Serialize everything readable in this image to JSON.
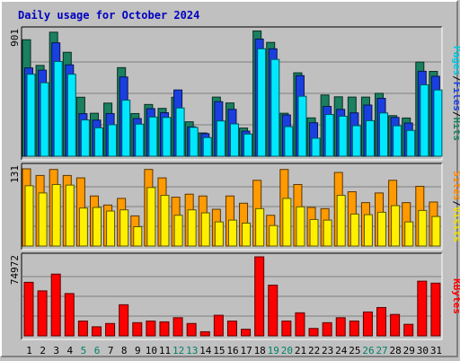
{
  "chart_data": {
    "type": "bar",
    "title": "Daily usage for October 2024",
    "x": [
      "1",
      "2",
      "3",
      "4",
      "5",
      "6",
      "7",
      "8",
      "9",
      "10",
      "11",
      "12",
      "13",
      "14",
      "15",
      "16",
      "17",
      "18",
      "19",
      "20",
      "21",
      "22",
      "23",
      "24",
      "25",
      "26",
      "27",
      "28",
      "29",
      "30",
      "31"
    ],
    "weekend_days": [
      "5",
      "6",
      "12",
      "13",
      "19",
      "20",
      "26",
      "27"
    ],
    "panels": [
      {
        "name": "hits-files-pages",
        "ymax_label": "901",
        "ymax": 901,
        "legend": [
          "Pages",
          "/",
          "Files",
          "/",
          "Hits"
        ],
        "legend_colors": [
          "#00c8e0",
          "#000000",
          "#1a3fe0",
          "#000000",
          "#1a8060"
        ],
        "series": [
          {
            "name": "Hits",
            "color": "#1a8060",
            "values": [
              835,
              651,
              889,
              745,
              423,
              308,
              381,
              635,
              306,
              371,
              343,
              423,
              247,
              167,
              424,
              382,
              202,
              898,
              816,
              308,
              598,
              275,
              439,
              426,
              424,
              424,
              451,
              291,
              274,
              675,
              608
            ]
          },
          {
            "name": "Files",
            "color": "#1a3fe0",
            "values": [
              633,
              617,
              813,
              655,
              305,
              259,
              306,
              568,
              270,
              341,
              312,
              475,
              211,
              162,
              391,
              336,
              180,
              840,
              770,
              296,
              578,
              240,
              357,
              336,
              311,
              367,
              415,
              278,
              238,
              609,
              573
            ]
          },
          {
            "name": "Pages",
            "color": "#00e8ff",
            "values": [
              588,
              527,
              679,
              588,
              260,
              204,
              226,
              402,
              230,
              281,
              278,
              346,
              207,
              134,
              253,
              232,
              159,
              770,
              694,
              212,
              430,
              129,
              299,
              287,
              219,
              255,
              310,
              218,
              185,
              512,
              475
            ]
          }
        ]
      },
      {
        "name": "sites-visits",
        "ymax_label": "131",
        "ymax": 131,
        "legend": [
          "Sites",
          "/",
          "Visits"
        ],
        "legend_colors": [
          "#ff8800",
          "#000000",
          "#f0e000"
        ],
        "series": [
          {
            "name": "Sites",
            "color": "#ff9a00",
            "values": [
              128,
              117,
              127,
              117,
              113,
              83,
              68,
              79,
              50,
              127,
              113,
              81,
              86,
              83,
              61,
              83,
              71,
              109,
              51,
              127,
              102,
              64,
              62,
              122,
              90,
              72,
              88,
              109,
              72,
              99,
              73
            ]
          },
          {
            "name": "Visits",
            "color": "#fff000",
            "values": [
              100,
              88,
              102,
              101,
              63,
              64,
              58,
              60,
              32,
              97,
              84,
              51,
              60,
              55,
              40,
              43,
              38,
              62,
              34,
              79,
              65,
              44,
              43,
              84,
              53,
              52,
              56,
              67,
              40,
              59,
              49
            ]
          }
        ]
      },
      {
        "name": "kbytes",
        "ymax_label": "74972",
        "ymax": 74972,
        "legend": [
          "KBytes"
        ],
        "legend_colors": [
          "#ff0000"
        ],
        "series": [
          {
            "name": "KBytes",
            "color": "#ff0000",
            "values": [
              50812,
              42688,
              58562,
              40125,
              14062,
              8594,
              11719,
              29500,
              12500,
              14062,
              13281,
              17188,
              11719,
              3906,
              19531,
              14062,
              6250,
              74972,
              48125,
              14062,
              21875,
              7031,
              12500,
              17188,
              14062,
              22656,
              26875,
              20312,
              10938,
              51875,
              50000
            ]
          }
        ]
      }
    ]
  }
}
